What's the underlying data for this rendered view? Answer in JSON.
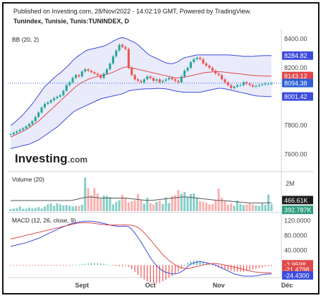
{
  "header": {
    "published": "Published on Investing.com, 28/Nov/2022 - 14:02:19 GMT, Powered by TradingView.",
    "instrument": "Tunindex, Tunisie, Tunis:TUNINDEX, D"
  },
  "logo": {
    "main": "Investing",
    "suffix": ".com"
  },
  "chart_data": [
    {
      "type": "candlestick",
      "indicator_label": "BB (20, 2)",
      "x_ticks": [
        "Sept",
        "Oct",
        "Nov",
        "Déc"
      ],
      "y_ticks": [
        "8400.00",
        "8200.00",
        "8000.00",
        "7800.00",
        "7600.00"
      ],
      "ylim": [
        7500,
        8450
      ],
      "price_badges": [
        {
          "text": "8284.82",
          "value": 8284.82,
          "color": "#3b4bdc"
        },
        {
          "text": "8143.12",
          "value": 8143.12,
          "color": "#e04848"
        },
        {
          "text": "8094.38",
          "value": 8094.38,
          "color": "#2f61d6"
        },
        {
          "text": "8001.42",
          "value": 8001.42,
          "color": "#3b4bdc"
        }
      ],
      "x": [
        0,
        1,
        2,
        3,
        4,
        5,
        6,
        7,
        8,
        9,
        10,
        11,
        12,
        13,
        14,
        15,
        16,
        17,
        18,
        19,
        20,
        21,
        22,
        23,
        24,
        25,
        26,
        27,
        28,
        29,
        30,
        31,
        32,
        33,
        34,
        35,
        36,
        37,
        38,
        39,
        40,
        41,
        42,
        43,
        44,
        45,
        46,
        47,
        48,
        49,
        50,
        51,
        52,
        53,
        54,
        55,
        56,
        57,
        58,
        59,
        60,
        61,
        62,
        63,
        64,
        65,
        66,
        67,
        68,
        69,
        70,
        71,
        72,
        73,
        74,
        75,
        76,
        77,
        78,
        79,
        80,
        81,
        82,
        83,
        84
      ],
      "close": [
        7740,
        7750,
        7760,
        7770,
        7780,
        7795,
        7810,
        7830,
        7860,
        7890,
        7925,
        7950,
        7960,
        7975,
        7990,
        8000,
        8010,
        8040,
        8080,
        8100,
        8130,
        8150,
        8140,
        8175,
        8190,
        8180,
        8170,
        8160,
        8150,
        8130,
        8160,
        8190,
        8230,
        8280,
        8320,
        8360,
        8345,
        8330,
        8200,
        8150,
        8120,
        8110,
        8100,
        8120,
        8140,
        8130,
        8110,
        8120,
        8100,
        8110,
        8120,
        8130,
        8120,
        8110,
        8100,
        8140,
        8180,
        8200,
        8240,
        8260,
        8270,
        8260,
        8230,
        8215,
        8200,
        8180,
        8160,
        8150,
        8120,
        8100,
        8080,
        8060,
        8070,
        8080,
        8080,
        8100,
        8090,
        8080,
        8070,
        8075,
        8080,
        8085,
        8090,
        8090,
        8094
      ],
      "upper_band": [
        7800,
        7815,
        7835,
        7855,
        7875,
        7900,
        7925,
        7950,
        7980,
        8010,
        8040,
        8070,
        8090,
        8110,
        8130,
        8150,
        8165,
        8185,
        8205,
        8225,
        8250,
        8270,
        8285,
        8300,
        8315,
        8325,
        8330,
        8335,
        8340,
        8345,
        8350,
        8360,
        8372,
        8385,
        8395,
        8405,
        8410,
        8405,
        8395,
        8385,
        8375,
        8360,
        8340,
        8320,
        8300,
        8285,
        8275,
        8265,
        8255,
        8245,
        8235,
        8230,
        8228,
        8235,
        8245,
        8260,
        8270,
        8275,
        8280,
        8285,
        8290,
        8290,
        8290,
        8290,
        8290,
        8290,
        8290,
        8290,
        8290,
        8290,
        8290,
        8288,
        8286,
        8284,
        8282,
        8280,
        8280,
        8280,
        8280,
        8282,
        8283,
        8284,
        8285,
        8285,
        8285
      ],
      "middle_band": [
        7720,
        7730,
        7740,
        7750,
        7760,
        7772,
        7785,
        7800,
        7815,
        7830,
        7850,
        7870,
        7890,
        7910,
        7930,
        7950,
        7970,
        7990,
        8010,
        8030,
        8050,
        8070,
        8085,
        8100,
        8110,
        8120,
        8128,
        8135,
        8140,
        8145,
        8150,
        8155,
        8162,
        8170,
        8180,
        8190,
        8200,
        8205,
        8205,
        8200,
        8195,
        8190,
        8185,
        8180,
        8175,
        8170,
        8165,
        8160,
        8155,
        8150,
        8145,
        8140,
        8135,
        8130,
        8130,
        8132,
        8135,
        8140,
        8145,
        8150,
        8155,
        8160,
        8165,
        8168,
        8170,
        8172,
        8173,
        8173,
        8172,
        8170,
        8168,
        8165,
        8162,
        8160,
        8158,
        8155,
        8152,
        8150,
        8148,
        8146,
        8145,
        8144,
        8143,
        8143,
        8143
      ],
      "lower_band": [
        7640,
        7645,
        7650,
        7655,
        7660,
        7665,
        7670,
        7680,
        7690,
        7700,
        7715,
        7730,
        7745,
        7760,
        7775,
        7790,
        7810,
        7830,
        7850,
        7870,
        7890,
        7905,
        7915,
        7925,
        7935,
        7945,
        7955,
        7965,
        7975,
        7985,
        7990,
        7995,
        8000,
        8005,
        8010,
        8015,
        8020,
        8030,
        8040,
        8045,
        8048,
        8050,
        8052,
        8054,
        8055,
        8055,
        8056,
        8057,
        8057,
        8056,
        8055,
        8050,
        8045,
        8040,
        8036,
        8033,
        8030,
        8030,
        8030,
        8030,
        8030,
        8032,
        8035,
        8040,
        8045,
        8050,
        8055,
        8058,
        8058,
        8055,
        8050,
        8045,
        8040,
        8035,
        8030,
        8025,
        8020,
        8015,
        8010,
        8006,
        8004,
        8003,
        8002,
        8001,
        8001
      ]
    },
    {
      "type": "bar",
      "indicator_label": "Volume (20)",
      "y_ticks": [
        "2M"
      ],
      "value_badges": [
        {
          "text": "466.61K",
          "color": "#1e1e1e"
        },
        {
          "text": "392.787K",
          "color": "#2f9d80"
        }
      ],
      "values": [
        120,
        150,
        180,
        260,
        140,
        150,
        200,
        160,
        180,
        230,
        150,
        260,
        380,
        430,
        300,
        440,
        380,
        320,
        350,
        310,
        260,
        280,
        300,
        360,
        1900,
        1300,
        900,
        1300,
        1000,
        700,
        880,
        860,
        800,
        380,
        520,
        620,
        920,
        720,
        500,
        560,
        620,
        980,
        640,
        420,
        760,
        460,
        380,
        520,
        580,
        400,
        780,
        460,
        860,
        900,
        1200,
        980,
        1080,
        800,
        960,
        1000,
        760,
        580,
        540,
        480,
        380,
        400,
        620,
        1280,
        760,
        560,
        360,
        440,
        300,
        600,
        400,
        340,
        380,
        440,
        380,
        320,
        300,
        420,
        360,
        940,
        393
      ],
      "ma": [
        600,
        600,
        600,
        600,
        600,
        600,
        600,
        600,
        600,
        600,
        600,
        600,
        600,
        600,
        600,
        600,
        600,
        600,
        600,
        600,
        620,
        660,
        700,
        740,
        780,
        800,
        800,
        780,
        760,
        740,
        740,
        740,
        740,
        740,
        740,
        740,
        740,
        740,
        720,
        700,
        680,
        660,
        640,
        620,
        610,
        610,
        620,
        640,
        660,
        680,
        700,
        720,
        740,
        760,
        780,
        800,
        800,
        800,
        780,
        760,
        740,
        720,
        700,
        680,
        660,
        640,
        620,
        610,
        600,
        590,
        580,
        560,
        540,
        520,
        500,
        490,
        480,
        470,
        465,
        465,
        466,
        466,
        466,
        467,
        467
      ]
    },
    {
      "type": "line",
      "indicator_label": "MACD (12, 26, close, 9)",
      "y_ticks": [
        "120.0000",
        "80.0000",
        "40.0000"
      ],
      "value_badges": [
        {
          "text": "-2.9598",
          "color": "#e04848"
        },
        {
          "text": "-21.4798",
          "color": "#e04848"
        },
        {
          "text": "-24.4300",
          "color": "#3b4bdc"
        }
      ],
      "series": [
        {
          "name": "",
          "values": [
            50,
            52,
            54,
            56,
            58,
            60,
            63,
            66,
            69,
            72,
            76,
            80,
            84,
            88,
            92,
            96,
            100,
            103,
            106,
            110,
            112,
            114,
            116,
            117,
            118,
            118,
            118,
            117,
            116,
            114,
            112,
            110,
            108,
            106,
            105,
            104,
            104,
            105,
            103,
            96,
            86,
            74,
            62,
            48,
            34,
            20,
            8,
            -2,
            -10,
            -16,
            -20,
            -22,
            -24,
            -24,
            -22,
            -18,
            -12,
            -4,
            2,
            6,
            8,
            9,
            8,
            6,
            4,
            2,
            0,
            -4,
            -8,
            -12,
            -16,
            -20,
            -24,
            -26,
            -28,
            -30,
            -30,
            -30,
            -30,
            -29,
            -28,
            -26,
            -25,
            -24,
            -24.43
          ]
        },
        {
          "name": "",
          "values": [
            70,
            72,
            74,
            76,
            78,
            80,
            82,
            84,
            86,
            88,
            90,
            92,
            94,
            96,
            98,
            100,
            102,
            104,
            106,
            108,
            110,
            112,
            113,
            114,
            114,
            114,
            113,
            112,
            111,
            110,
            109,
            108,
            108,
            108,
            108,
            108,
            108,
            108,
            108,
            107,
            105,
            101,
            95,
            87,
            78,
            68,
            58,
            48,
            38,
            28,
            20,
            12,
            6,
            0,
            -4,
            -8,
            -10,
            -10,
            -8,
            -6,
            -4,
            -2,
            0,
            2,
            3,
            4,
            4,
            3,
            2,
            0,
            -2,
            -4,
            -6,
            -8,
            -10,
            -12,
            -14,
            -16,
            -18,
            -19,
            -20,
            -20.5,
            -21,
            -21.2,
            -21.48
          ]
        }
      ],
      "histogram": [
        -2,
        -2,
        -2,
        -2,
        -2,
        -2,
        -2,
        -2,
        -2,
        -2,
        -2,
        -2,
        -2,
        -2,
        -2,
        -2,
        -2,
        -2,
        -2,
        -2,
        -1,
        0,
        1,
        2,
        3,
        4,
        5,
        5,
        5,
        4,
        3,
        2,
        0,
        -2,
        -3,
        -4,
        -4,
        -3,
        -5,
        -11,
        -19,
        -27,
        -33,
        -39,
        -44,
        -48,
        -50,
        -50,
        -48,
        -44,
        -40,
        -34,
        -30,
        -24,
        -18,
        -10,
        -2,
        6,
        10,
        12,
        12,
        11,
        8,
        4,
        1,
        -2,
        -4,
        -7,
        -10,
        -12,
        -14,
        -16,
        -18,
        -18,
        -18,
        -18,
        -16,
        -14,
        -12,
        -10,
        -8,
        -6,
        -4,
        -2.96,
        -2.96
      ]
    }
  ]
}
